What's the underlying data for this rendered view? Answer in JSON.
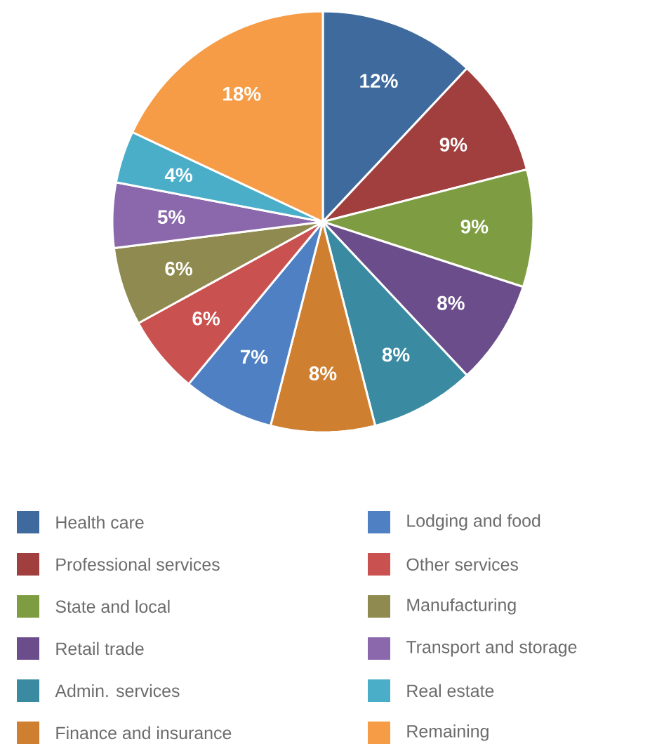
{
  "chart_data": {
    "type": "pie",
    "categories": [
      "Health care",
      "Professional services",
      "State and local",
      "Retail trade",
      "Admin. services",
      "Finance and insurance",
      "Lodging and food",
      "Other services",
      "Manufacturing",
      "Transport and storage",
      "Real estate",
      "Remaining"
    ],
    "values": [
      12,
      9,
      9,
      8,
      8,
      8,
      7,
      6,
      6,
      5,
      4,
      18
    ],
    "value_labels": [
      "12%",
      "9%",
      "9%",
      "8%",
      "8%",
      "8%",
      "7%",
      "6%",
      "6%",
      "5%",
      "4%",
      "18%"
    ],
    "colors": [
      "#3e6a9d",
      "#a13f3f",
      "#7e9c41",
      "#6a4d8a",
      "#3a8ba2",
      "#cf7f30",
      "#4f80c3",
      "#c9514f",
      "#8f8a4f",
      "#8a68ab",
      "#4aaec9",
      "#f69c46"
    ],
    "legend": "bottom"
  }
}
